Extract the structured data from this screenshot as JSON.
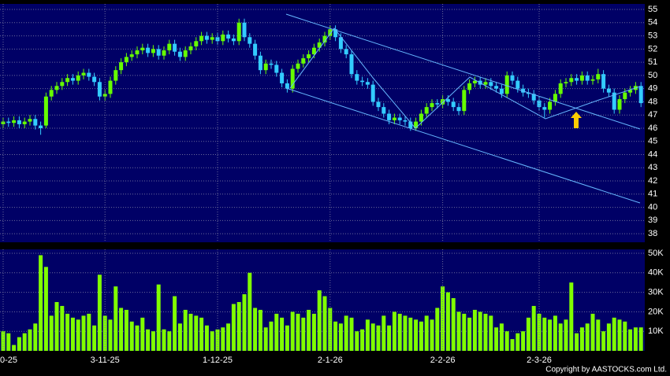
{
  "chart_data": [
    {
      "type": "candlestick",
      "up_color": "#66ff00",
      "down_color": "#33ccff",
      "ylim": [
        37.35,
        55.42
      ],
      "yticks": [
        38,
        39,
        40,
        41,
        42,
        43,
        44,
        45,
        46,
        47,
        48,
        49,
        50,
        51,
        52,
        53,
        54,
        55
      ],
      "grid": true,
      "open": [
        46.3,
        46.5,
        46.4,
        46.6,
        46.3,
        46.5,
        46.7,
        46.2,
        46.2,
        48.4,
        48.9,
        49.2,
        49.5,
        49.8,
        49.6,
        50.0,
        50.2,
        49.9,
        49.5,
        48.4,
        48.6,
        49.6,
        50.4,
        51.0,
        51.4,
        51.6,
        51.9,
        52.1,
        51.7,
        52.0,
        51.5,
        51.9,
        52.4,
        51.8,
        51.4,
        51.9,
        52.2,
        52.6,
        53.0,
        52.7,
        52.9,
        52.6,
        53.1,
        52.8,
        52.6,
        54.0,
        52.9,
        52.4,
        51.5,
        50.4,
        50.9,
        50.8,
        50.2,
        49.4,
        49.0,
        50.5,
        50.9,
        51.3,
        51.6,
        52.1,
        52.5,
        53.0,
        53.5,
        52.9,
        52.0,
        51.6,
        50.1,
        49.6,
        49.5,
        49.3,
        48.0,
        47.6,
        47.1,
        46.6,
        46.8,
        46.6,
        46.5,
        46.0,
        46.5,
        47.1,
        47.6,
        47.9,
        47.8,
        48.2,
        48.0,
        47.6,
        47.3,
        48.9,
        49.4,
        49.6,
        49.3,
        49.5,
        49.2,
        49.0,
        48.6,
        50.0,
        49.6,
        49.0,
        48.7,
        48.6,
        48.1,
        47.6,
        47.4,
        48.0,
        48.6,
        49.4,
        49.5,
        49.8,
        49.6,
        50.0,
        49.6,
        49.7,
        50.1,
        49.0,
        48.7,
        47.4,
        48.2,
        48.7,
        48.9,
        49.2
      ],
      "high": [
        46.8,
        46.8,
        46.9,
        46.9,
        46.8,
        47.0,
        47.0,
        46.5,
        48.7,
        49.2,
        49.5,
        49.8,
        50.1,
        50.1,
        50.3,
        50.5,
        50.5,
        50.2,
        49.8,
        48.9,
        49.9,
        50.7,
        51.3,
        51.7,
        51.9,
        52.2,
        52.4,
        52.4,
        52.3,
        52.3,
        52.2,
        52.7,
        52.7,
        52.1,
        52.2,
        52.5,
        52.9,
        53.3,
        53.3,
        53.2,
        53.2,
        53.4,
        53.4,
        53.1,
        54.3,
        54.3,
        53.2,
        52.7,
        51.8,
        51.2,
        51.2,
        51.1,
        50.5,
        49.7,
        50.8,
        51.2,
        51.6,
        51.9,
        52.4,
        52.8,
        53.3,
        53.8,
        53.8,
        53.2,
        52.3,
        51.9,
        50.4,
        49.9,
        49.8,
        49.6,
        48.3,
        47.9,
        47.4,
        47.1,
        47.1,
        46.9,
        46.8,
        46.8,
        47.4,
        47.9,
        48.2,
        48.2,
        48.5,
        48.5,
        48.3,
        47.9,
        49.2,
        49.7,
        49.9,
        49.9,
        49.8,
        49.8,
        49.5,
        49.3,
        50.3,
        50.3,
        49.9,
        49.3,
        49.0,
        48.9,
        48.4,
        47.9,
        48.3,
        48.9,
        49.7,
        49.8,
        50.1,
        50.1,
        50.3,
        50.3,
        50.0,
        50.5,
        50.4,
        49.3,
        49.0,
        48.5,
        49.0,
        49.2,
        49.5,
        49.5
      ],
      "low": [
        46.0,
        46.1,
        46.1,
        46.0,
        46.0,
        46.2,
        45.9,
        45.5,
        46.0,
        48.1,
        48.6,
        48.9,
        49.2,
        49.3,
        49.3,
        49.7,
        49.6,
        49.2,
        48.1,
        48.1,
        48.3,
        49.3,
        50.1,
        50.7,
        51.1,
        51.3,
        51.6,
        51.4,
        51.4,
        51.2,
        51.2,
        51.6,
        51.5,
        51.1,
        51.1,
        51.6,
        51.9,
        52.3,
        52.4,
        52.4,
        52.3,
        52.3,
        52.5,
        52.3,
        52.3,
        52.6,
        52.1,
        51.2,
        50.1,
        50.1,
        50.5,
        49.9,
        49.1,
        48.7,
        48.7,
        50.2,
        50.6,
        51.0,
        51.3,
        51.8,
        52.2,
        52.7,
        52.6,
        51.7,
        51.3,
        49.8,
        49.3,
        49.2,
        49.0,
        47.7,
        47.3,
        46.8,
        46.3,
        46.3,
        46.3,
        46.2,
        45.8,
        45.8,
        46.2,
        46.8,
        47.3,
        47.5,
        47.5,
        47.7,
        47.3,
        47.0,
        47.0,
        48.6,
        49.1,
        49.0,
        49.0,
        48.9,
        48.7,
        48.3,
        48.3,
        49.3,
        48.7,
        48.4,
        48.3,
        47.8,
        47.3,
        46.8,
        47.1,
        47.7,
        48.3,
        49.1,
        49.2,
        49.3,
        49.3,
        49.3,
        49.3,
        49.4,
        48.7,
        48.4,
        47.1,
        47.1,
        47.9,
        48.4,
        48.6,
        47.6
      ],
      "close": [
        46.5,
        46.4,
        46.6,
        46.3,
        46.5,
        46.7,
        46.2,
        46.0,
        48.4,
        48.9,
        49.2,
        49.5,
        49.8,
        49.6,
        50.0,
        50.2,
        49.9,
        49.5,
        48.4,
        48.6,
        49.6,
        50.4,
        51.0,
        51.4,
        51.6,
        51.9,
        52.1,
        51.7,
        52.0,
        51.5,
        51.9,
        52.4,
        51.8,
        51.4,
        51.9,
        52.2,
        52.6,
        53.0,
        52.7,
        52.9,
        52.6,
        53.1,
        52.8,
        52.6,
        54.0,
        52.9,
        52.4,
        51.5,
        50.4,
        50.9,
        50.8,
        50.2,
        49.4,
        49.0,
        50.5,
        50.9,
        51.3,
        51.6,
        52.1,
        52.5,
        53.0,
        53.5,
        52.9,
        52.0,
        51.6,
        50.1,
        49.6,
        49.5,
        49.3,
        48.0,
        47.6,
        47.1,
        46.6,
        46.8,
        46.6,
        46.5,
        46.0,
        46.5,
        47.1,
        47.6,
        47.9,
        47.8,
        48.2,
        48.0,
        47.6,
        47.3,
        48.9,
        49.4,
        49.6,
        49.3,
        49.5,
        49.2,
        49.0,
        48.6,
        50.0,
        49.6,
        49.0,
        48.7,
        48.6,
        48.1,
        47.6,
        47.4,
        48.0,
        48.6,
        49.4,
        49.5,
        49.8,
        49.6,
        50.0,
        49.6,
        49.7,
        50.1,
        49.0,
        48.7,
        47.4,
        48.2,
        48.7,
        48.9,
        49.2,
        47.9
      ]
    },
    {
      "type": "bar",
      "color": "#80ff00",
      "ylim": [
        0,
        52000
      ],
      "yticks": [
        {
          "value": 10000,
          "label": "10K"
        },
        {
          "value": 20000,
          "label": "20K"
        },
        {
          "value": 30000,
          "label": "30K"
        },
        {
          "value": 40000,
          "label": "40K"
        },
        {
          "value": 50000,
          "label": "50K"
        }
      ],
      "categories": [
        "0-25",
        null,
        null,
        null,
        null,
        null,
        null,
        null,
        null,
        null,
        null,
        null,
        null,
        null,
        null,
        null,
        null,
        null,
        null,
        "3-11-25",
        null,
        null,
        null,
        null,
        null,
        null,
        null,
        null,
        null,
        null,
        null,
        null,
        null,
        null,
        null,
        null,
        null,
        null,
        null,
        null,
        "1-12-25",
        null,
        null,
        null,
        null,
        null,
        null,
        null,
        null,
        null,
        null,
        null,
        null,
        null,
        null,
        null,
        null,
        null,
        null,
        null,
        null,
        "2-1-26",
        null,
        null,
        null,
        null,
        null,
        null,
        null,
        null,
        null,
        null,
        null,
        null,
        null,
        null,
        null,
        null,
        null,
        null,
        null,
        null,
        "2-2-26",
        null,
        null,
        null,
        null,
        null,
        null,
        null,
        null,
        null,
        null,
        null,
        null,
        null,
        null,
        null,
        null,
        null,
        "2-3-26",
        null,
        null,
        null,
        null,
        null,
        null,
        null,
        null,
        null,
        null,
        null,
        null,
        null,
        null,
        null,
        null,
        null,
        null,
        null
      ],
      "values": [
        10000,
        9000,
        3000,
        7000,
        9000,
        11000,
        14000,
        49000,
        43000,
        18000,
        25000,
        23000,
        19000,
        17000,
        16000,
        18000,
        19000,
        13000,
        39000,
        18000,
        16000,
        33000,
        22000,
        21000,
        15000,
        13000,
        17000,
        11000,
        10000,
        34000,
        11000,
        10000,
        28000,
        14000,
        21000,
        19000,
        18000,
        17000,
        13000,
        10000,
        11000,
        12000,
        14000,
        24000,
        25000,
        29000,
        40000,
        22000,
        21000,
        12000,
        15000,
        19000,
        17000,
        13000,
        20000,
        19000,
        17000,
        21000,
        19000,
        31000,
        28000,
        22000,
        15000,
        14000,
        18000,
        17000,
        10000,
        11000,
        16000,
        14000,
        13000,
        18000,
        13000,
        20000,
        19000,
        18000,
        17000,
        16000,
        15000,
        18000,
        16000,
        22000,
        33000,
        30000,
        27000,
        20000,
        19000,
        17000,
        21000,
        20000,
        19000,
        18000,
        12000,
        14000,
        10000,
        6000,
        9000,
        10000,
        17000,
        23000,
        19000,
        17000,
        16000,
        18000,
        14000,
        16000,
        35000,
        9000,
        12000,
        14000,
        19000,
        16000,
        10000,
        14000,
        17000,
        16000,
        15000,
        11000,
        12000,
        12000
      ],
      "copyright": "Copyright by AASTOCKS.com Ltd."
    }
  ]
}
